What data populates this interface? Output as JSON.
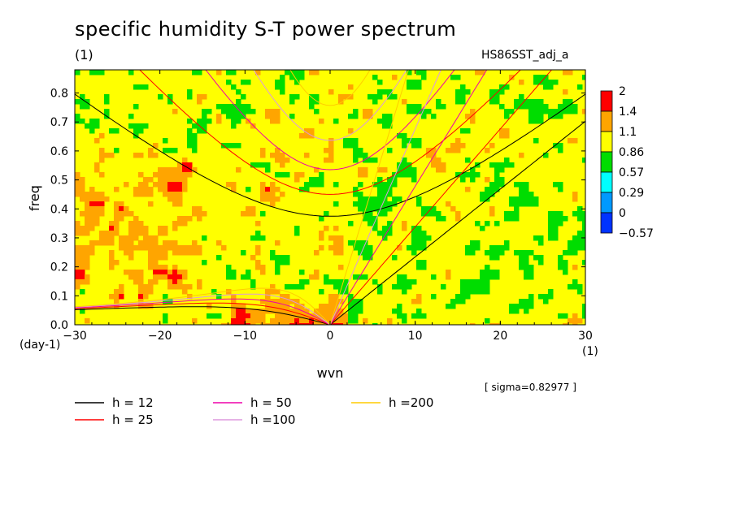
{
  "header": {
    "title": "specific humidity S-T power spectrum",
    "subtitle_left": "(1)",
    "subtitle_right": "HS86SST_adj_a"
  },
  "annotation": {
    "sigma": "[ sigma=0.82977 ]"
  },
  "chart_data": {
    "type": "heatmap",
    "title": "specific humidity S-T power spectrum",
    "xlabel": "wvn",
    "ylabel": "freq",
    "x_unit_label": "(1)",
    "y_unit_label": "(day-1)",
    "xlim": [
      -30,
      30
    ],
    "ylim": [
      0,
      0.88
    ],
    "x_ticks": [
      -30,
      -20,
      -10,
      0,
      10,
      20,
      30
    ],
    "x_tick_labels": [
      "−30",
      "−20",
      "−10",
      "0",
      "10",
      "20",
      "30"
    ],
    "y_ticks": [
      0,
      0.1,
      0.2,
      0.3,
      0.4,
      0.5,
      0.6,
      0.7,
      0.8
    ],
    "y_tick_labels": [
      "0.0",
      "0.1",
      "0.2",
      "0.3",
      "0.4",
      "0.5",
      "0.6",
      "0.7",
      "0.8"
    ],
    "colorbar": {
      "levels": [
        "2",
        "1.4",
        "1.1",
        "0.86",
        "0.57",
        "0.29",
        "0",
        "−0.57"
      ],
      "colors": [
        "#ff0000",
        "#ffa500",
        "#ffff00",
        "#00dd00",
        "#00ffff",
        "#0099ff",
        "#0033ff"
      ]
    },
    "field_note_colors": {
      "dominant": "#ffff00",
      "secondary": "#00dd00",
      "high": "#ffa500",
      "peak": "#ff0000"
    },
    "dispersion_curves": [
      {
        "name": "h = 12",
        "color": "#000000",
        "h": 12
      },
      {
        "name": "h = 25",
        "color": "#ff0000",
        "h": 25
      },
      {
        "name": "h = 50",
        "color": "#ee00aa",
        "h": 50
      },
      {
        "name": "h =100",
        "color": "#dd99dd",
        "h": 100
      },
      {
        "name": "h =200",
        "color": "#ffcc00",
        "h": 200
      }
    ],
    "legend_position": "bottom-left"
  }
}
